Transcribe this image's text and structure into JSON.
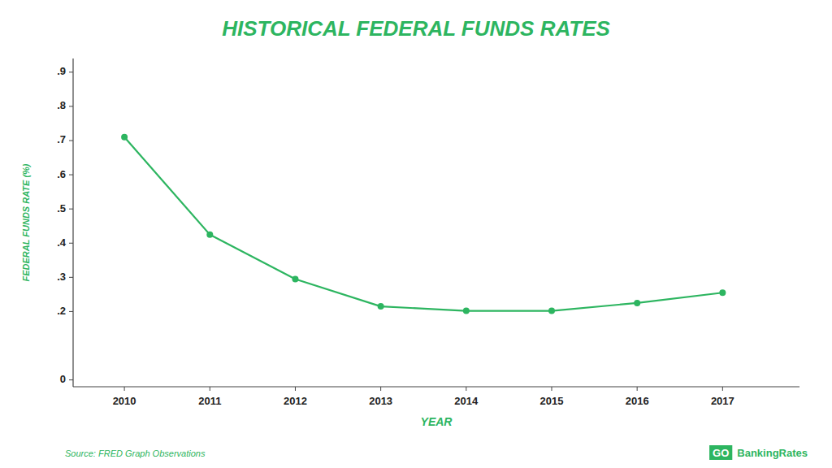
{
  "chart_data": {
    "type": "line",
    "title": "HISTORICAL FEDERAL FUNDS RATES",
    "xlabel": "YEAR",
    "ylabel": "FEDERAL FUNDS RATE (%)",
    "x": [
      2010,
      2011,
      2012,
      2013,
      2014,
      2015,
      2016,
      2017
    ],
    "values": [
      0.71,
      0.425,
      0.295,
      0.215,
      0.202,
      0.202,
      0.225,
      0.255
    ],
    "color": "#2db560",
    "marker": "circle",
    "xlim": [
      2009.4,
      2017.9
    ],
    "xticks": [
      2010,
      2011,
      2012,
      2013,
      2014,
      2015,
      2016,
      2017
    ],
    "ylim": [
      -0.02,
      0.94
    ],
    "yticks": [
      0,
      {
        "value": 0.2,
        "label": ".2"
      },
      {
        "value": 0.3,
        "label": ".3"
      },
      {
        "value": 0.4,
        "label": ".4"
      },
      {
        "value": 0.5,
        "label": ".5"
      },
      {
        "value": 0.6,
        "label": ".6"
      },
      {
        "value": 0.7,
        "label": ".7"
      },
      {
        "value": 0.8,
        "label": ".8"
      },
      {
        "value": 0.9,
        "label": ".9"
      }
    ],
    "grid": false,
    "annotations": [
      "Source: FRED Graph Observations",
      "GO",
      "BankingRates"
    ]
  }
}
